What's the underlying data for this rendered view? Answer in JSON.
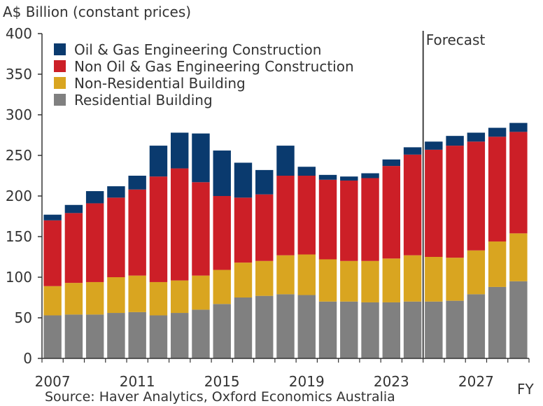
{
  "chart_data": {
    "type": "bar",
    "stacked": true,
    "ylabel": "A$ Billion (constant prices)",
    "xlabel": "FY",
    "ylim": [
      0,
      400
    ],
    "yticks": [
      0,
      50,
      100,
      150,
      200,
      250,
      300,
      350,
      400
    ],
    "x": [
      2007,
      2008,
      2009,
      2010,
      2011,
      2012,
      2013,
      2014,
      2015,
      2016,
      2017,
      2018,
      2019,
      2020,
      2021,
      2022,
      2023,
      2024,
      2025,
      2026,
      2027,
      2028,
      2029
    ],
    "xtick_labels": [
      "2007",
      "2011",
      "2015",
      "2019",
      "2023",
      "2027"
    ],
    "forecast_label": "Forecast",
    "forecast_after": 2024,
    "legend_position": "top-left",
    "grid": false,
    "series": [
      {
        "name": "Residential Building",
        "color": "#808080",
        "values": [
          53,
          54,
          54,
          56,
          57,
          53,
          56,
          60,
          67,
          75,
          77,
          79,
          78,
          70,
          70,
          69,
          69,
          70,
          70,
          71,
          79,
          88,
          95
        ]
      },
      {
        "name": "Non-Residential Building",
        "color": "#d9a520",
        "values": [
          36,
          39,
          40,
          44,
          45,
          41,
          40,
          42,
          42,
          43,
          43,
          48,
          50,
          52,
          50,
          51,
          54,
          57,
          55,
          53,
          54,
          56,
          59
        ]
      },
      {
        "name": "Non Oil & Gas Engineering Construction",
        "color": "#cc1f27",
        "values": [
          81,
          86,
          97,
          98,
          106,
          130,
          138,
          115,
          91,
          80,
          82,
          98,
          97,
          98,
          99,
          102,
          114,
          124,
          132,
          138,
          134,
          129,
          125
        ]
      },
      {
        "name": "Oil & Gas Engineering Construction",
        "color": "#0a3a6e",
        "values": [
          7,
          10,
          15,
          14,
          17,
          38,
          44,
          60,
          56,
          43,
          30,
          37,
          11,
          6,
          5,
          6,
          8,
          9,
          10,
          12,
          11,
          11,
          11
        ]
      }
    ],
    "legend_order": [
      "Oil & Gas Engineering Construction",
      "Non Oil & Gas Engineering Construction",
      "Non-Residential Building",
      "Residential Building"
    ],
    "source": "Source: Haver Analytics, Oxford Economics Australia"
  }
}
